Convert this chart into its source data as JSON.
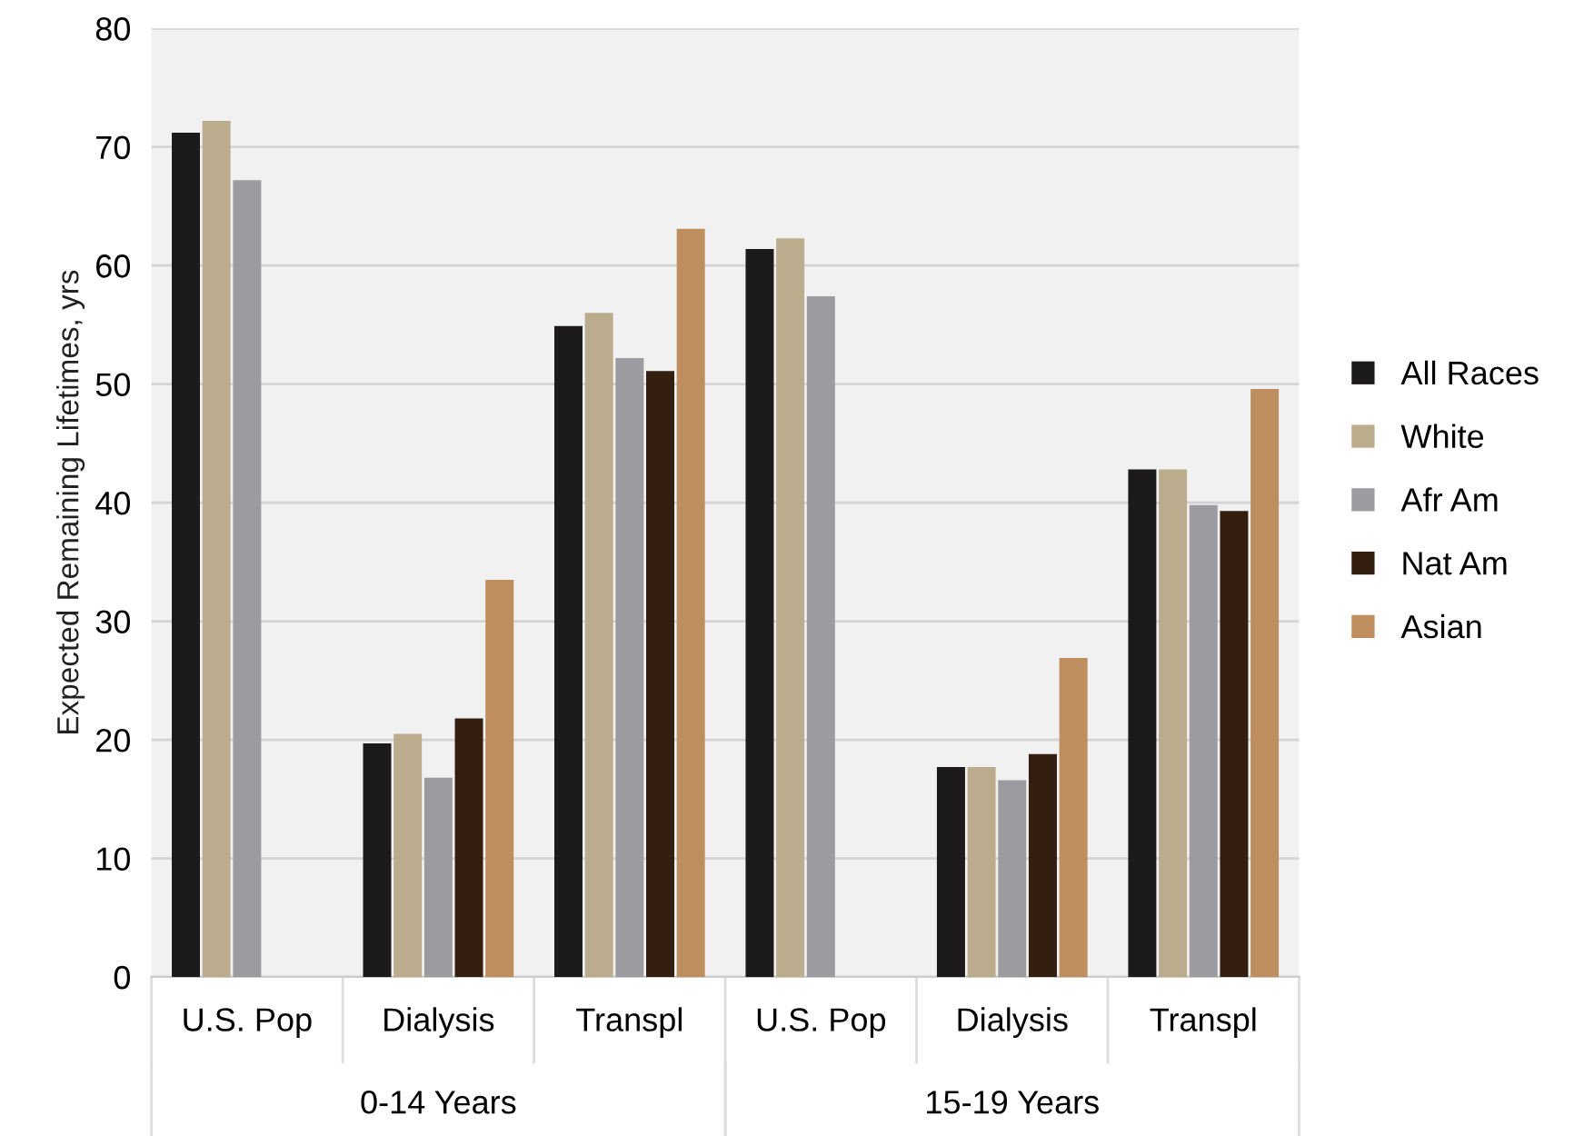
{
  "chart_data": {
    "type": "bar",
    "ylabel": "Expected Remaining Lifetimes, yrs",
    "categories": [
      "U.S. Pop",
      "Dialysis",
      "Transpl",
      "U.S. Pop",
      "Dialysis",
      "Transpl"
    ],
    "series": [
      {
        "name": "All Races",
        "color": "#1c1a1a",
        "values": [
          71.2,
          19.7,
          54.9,
          61.4,
          17.7,
          42.8
        ]
      },
      {
        "name": "White",
        "color": "#bcac8e",
        "values": [
          72.2,
          20.5,
          56.0,
          62.3,
          17.7,
          42.8
        ]
      },
      {
        "name": "Afr Am",
        "color": "#9c9ca0",
        "values": [
          67.2,
          16.8,
          52.2,
          57.4,
          16.6,
          39.8
        ]
      },
      {
        "name": "Nat Am",
        "color": "#331e10",
        "values": [
          null,
          21.8,
          51.1,
          null,
          18.8,
          39.3
        ]
      },
      {
        "name": "Asian",
        "color": "#bf8e5e",
        "values": [
          null,
          33.5,
          63.1,
          null,
          26.9,
          49.6
        ]
      }
    ],
    "annotations": [
      "0-14 Years",
      "15-19 Years"
    ],
    "ylim": [
      0,
      80
    ],
    "yticks": [
      0,
      10,
      20,
      30,
      40,
      50,
      60,
      70,
      80
    ],
    "grid": "y",
    "legend": "right"
  }
}
